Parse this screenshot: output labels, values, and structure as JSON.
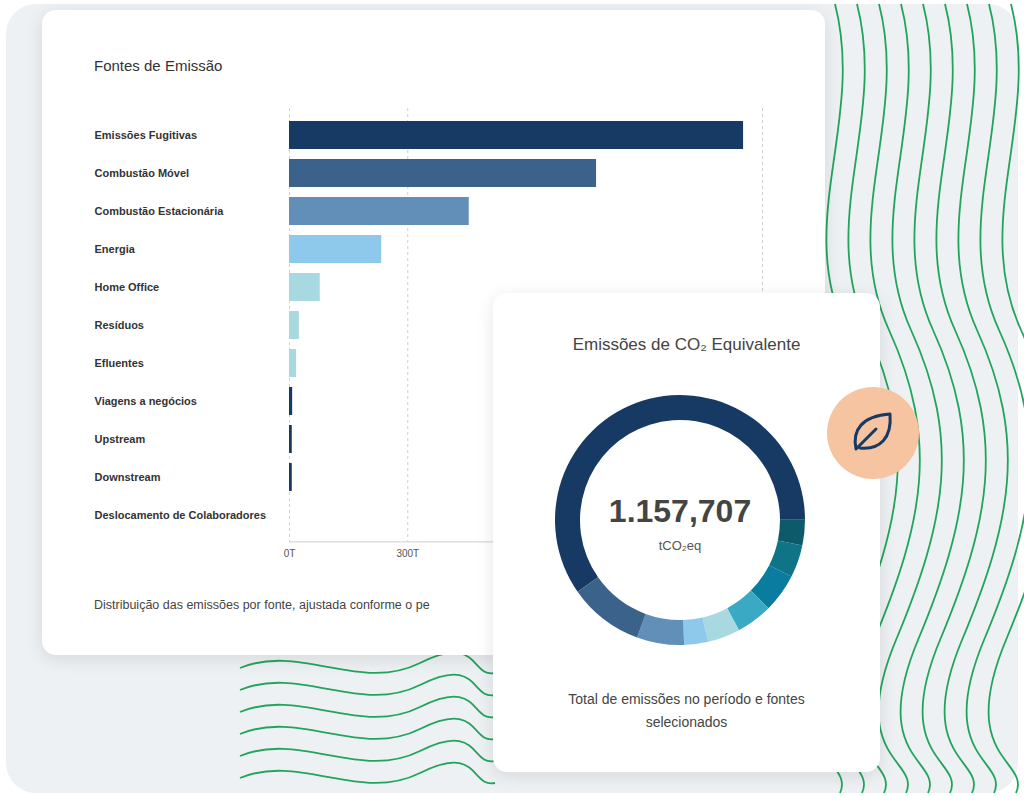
{
  "chart_data": [
    {
      "type": "bar",
      "orientation": "horizontal",
      "title": "Fontes de Emissão",
      "caption": "Distribuição das emissões por fonte, ajustada conforme o pe",
      "categories": [
        "Emissões Fugitivas",
        "Combustão Móvel",
        "Combustão Estacionária",
        "Energia",
        "Home Office",
        "Resíduos",
        "Efluentes",
        "Viagens a negócios",
        "Upstream",
        "Downstream",
        "Deslocamento de Colaboradores"
      ],
      "values": [
        1152,
        779,
        456,
        234,
        78,
        25,
        18,
        8,
        7,
        7,
        0
      ],
      "colors": [
        "#163a63",
        "#3a628b",
        "#628fb8",
        "#8ec8ea",
        "#a8d8e0",
        "#a8d8e0",
        "#a8d8e0",
        "#163a63",
        "#163a63",
        "#163a63",
        "#163a63"
      ],
      "xlim": [
        0,
        1200
      ],
      "xticks": [
        {
          "value": 0,
          "label": "0T"
        },
        {
          "value": 300,
          "label": "300T"
        }
      ],
      "grid": true
    },
    {
      "type": "donut",
      "title": "Emissões de CO₂ Equivalente",
      "center_label": "1.157,707",
      "center_sublabel": "tCO₂eq",
      "caption": "Total de emissões no período e fontes selecionados",
      "values": [
        59.7,
        3.3,
        4.2,
        5,
        4.7,
        4.2,
        3.1,
        6.1,
        9.7
      ],
      "colors": [
        "#163a63",
        "#0d5a6a",
        "#0e7486",
        "#0a7ca0",
        "#3aaac4",
        "#a8d8e0",
        "#8ec8ea",
        "#628fb8",
        "#3a628b"
      ]
    }
  ]
}
